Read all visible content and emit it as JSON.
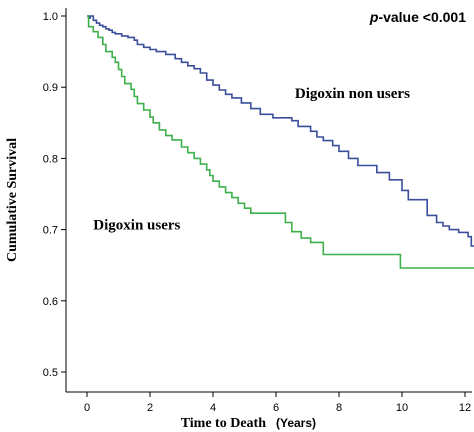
{
  "chart_data": {
    "type": "line",
    "step": true,
    "xlabel": "Time to Death",
    "xunit": "(Years)",
    "ylabel": "Cumulative Survival",
    "xlim": [
      0,
      12.3
    ],
    "ylim": [
      0.48,
      1.02
    ],
    "xticks": [
      0,
      2,
      4,
      6,
      8,
      10,
      12
    ],
    "yticks": [
      0.5,
      0.6,
      0.7,
      0.8,
      0.9,
      1.0
    ],
    "ytick_labels": [
      "0.5",
      "0.6",
      "0.7",
      "0.8",
      "0.9",
      "1.0"
    ],
    "annotation": {
      "italic": "p",
      "text": "-value <0.001"
    },
    "grid": false,
    "series": [
      {
        "name": "Digoxin non users",
        "color": "#3a4e9c",
        "points": [
          [
            0,
            1.0
          ],
          [
            0.05,
            0.997
          ],
          [
            0.1,
            1.0
          ],
          [
            0.2,
            0.994
          ],
          [
            0.3,
            0.99
          ],
          [
            0.4,
            0.987
          ],
          [
            0.5,
            0.985
          ],
          [
            0.6,
            0.982
          ],
          [
            0.7,
            0.98
          ],
          [
            0.8,
            0.977
          ],
          [
            0.9,
            0.975
          ],
          [
            1.1,
            0.972
          ],
          [
            1.3,
            0.97
          ],
          [
            1.5,
            0.966
          ],
          [
            1.6,
            0.96
          ],
          [
            1.8,
            0.956
          ],
          [
            2.0,
            0.953
          ],
          [
            2.2,
            0.95
          ],
          [
            2.5,
            0.946
          ],
          [
            2.8,
            0.94
          ],
          [
            3.0,
            0.935
          ],
          [
            3.2,
            0.93
          ],
          [
            3.4,
            0.926
          ],
          [
            3.6,
            0.92
          ],
          [
            3.8,
            0.91
          ],
          [
            4.0,
            0.903
          ],
          [
            4.2,
            0.896
          ],
          [
            4.4,
            0.89
          ],
          [
            4.6,
            0.885
          ],
          [
            4.9,
            0.878
          ],
          [
            5.2,
            0.87
          ],
          [
            5.5,
            0.862
          ],
          [
            5.9,
            0.857
          ],
          [
            6.5,
            0.853
          ],
          [
            6.7,
            0.845
          ],
          [
            7.1,
            0.838
          ],
          [
            7.3,
            0.83
          ],
          [
            7.5,
            0.825
          ],
          [
            7.8,
            0.818
          ],
          [
            8.0,
            0.81
          ],
          [
            8.3,
            0.8
          ],
          [
            8.6,
            0.79
          ],
          [
            9.2,
            0.78
          ],
          [
            9.6,
            0.77
          ],
          [
            10.0,
            0.755
          ],
          [
            10.2,
            0.742
          ],
          [
            10.8,
            0.72
          ],
          [
            11.1,
            0.71
          ],
          [
            11.3,
            0.705
          ],
          [
            11.5,
            0.7
          ],
          [
            11.8,
            0.696
          ],
          [
            12.1,
            0.69
          ],
          [
            12.2,
            0.677
          ],
          [
            12.3,
            0.677
          ]
        ]
      },
      {
        "name": "Digoxin users",
        "color": "#3db04a",
        "points": [
          [
            0,
            1.0
          ],
          [
            0.05,
            0.985
          ],
          [
            0.2,
            0.978
          ],
          [
            0.35,
            0.97
          ],
          [
            0.5,
            0.96
          ],
          [
            0.6,
            0.95
          ],
          [
            0.8,
            0.942
          ],
          [
            0.9,
            0.935
          ],
          [
            1.0,
            0.925
          ],
          [
            1.1,
            0.915
          ],
          [
            1.2,
            0.905
          ],
          [
            1.4,
            0.897
          ],
          [
            1.5,
            0.887
          ],
          [
            1.6,
            0.877
          ],
          [
            1.8,
            0.868
          ],
          [
            2.0,
            0.858
          ],
          [
            2.1,
            0.85
          ],
          [
            2.3,
            0.84
          ],
          [
            2.5,
            0.832
          ],
          [
            2.7,
            0.826
          ],
          [
            3.0,
            0.816
          ],
          [
            3.2,
            0.808
          ],
          [
            3.4,
            0.8
          ],
          [
            3.6,
            0.792
          ],
          [
            3.8,
            0.784
          ],
          [
            3.9,
            0.776
          ],
          [
            4.0,
            0.768
          ],
          [
            4.2,
            0.76
          ],
          [
            4.4,
            0.752
          ],
          [
            4.6,
            0.745
          ],
          [
            4.8,
            0.737
          ],
          [
            5.0,
            0.73
          ],
          [
            5.2,
            0.723
          ],
          [
            6.0,
            0.723
          ],
          [
            6.3,
            0.71
          ],
          [
            6.5,
            0.697
          ],
          [
            6.8,
            0.688
          ],
          [
            7.1,
            0.682
          ],
          [
            7.5,
            0.665
          ],
          [
            9.9,
            0.665
          ],
          [
            9.95,
            0.646
          ],
          [
            12.3,
            0.646
          ]
        ]
      }
    ],
    "labels": [
      {
        "series": 0,
        "text": "Digoxin non users",
        "x": 6.6,
        "y": 0.885
      },
      {
        "series": 1,
        "text": "Digoxin users",
        "x": 0.2,
        "y": 0.7
      }
    ]
  }
}
